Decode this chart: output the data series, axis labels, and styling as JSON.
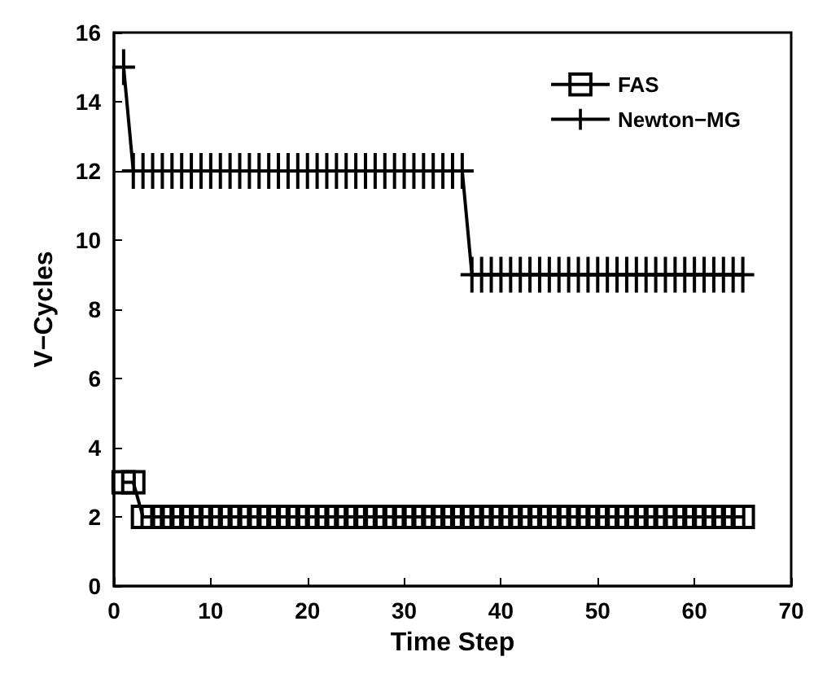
{
  "chart_data": {
    "type": "line",
    "xlabel": "Time Step",
    "ylabel": "V−Cycles",
    "xlim": [
      0,
      70
    ],
    "xticks": [
      0,
      10,
      20,
      30,
      40,
      50,
      60,
      70
    ],
    "ylim": [
      0,
      16
    ],
    "yticks": [
      0,
      2,
      4,
      6,
      8,
      10,
      12,
      14,
      16
    ],
    "grid": false,
    "legend": "top right",
    "series": [
      {
        "name": "FAS",
        "color": "#000000",
        "marker": "square",
        "x": [
          1,
          2,
          3,
          4,
          5,
          6,
          7,
          8,
          9,
          10,
          11,
          12,
          13,
          14,
          15,
          16,
          17,
          18,
          19,
          20,
          21,
          22,
          23,
          24,
          25,
          26,
          27,
          28,
          29,
          30,
          31,
          32,
          33,
          34,
          35,
          36,
          37,
          38,
          39,
          40,
          41,
          42,
          43,
          44,
          45,
          46,
          47,
          48,
          49,
          50,
          51,
          52,
          53,
          54,
          55,
          56,
          57,
          58,
          59,
          60,
          61,
          62,
          63,
          64,
          65
        ],
        "values": [
          3,
          3,
          2,
          2,
          2,
          2,
          2,
          2,
          2,
          2,
          2,
          2,
          2,
          2,
          2,
          2,
          2,
          2,
          2,
          2,
          2,
          2,
          2,
          2,
          2,
          2,
          2,
          2,
          2,
          2,
          2,
          2,
          2,
          2,
          2,
          2,
          2,
          2,
          2,
          2,
          2,
          2,
          2,
          2,
          2,
          2,
          2,
          2,
          2,
          2,
          2,
          2,
          2,
          2,
          2,
          2,
          2,
          2,
          2,
          2,
          2,
          2,
          2,
          2,
          2
        ]
      },
      {
        "name": "Newton−MG",
        "color": "#000000",
        "marker": "cross",
        "x": [
          1,
          2,
          3,
          4,
          5,
          6,
          7,
          8,
          9,
          10,
          11,
          12,
          13,
          14,
          15,
          16,
          17,
          18,
          19,
          20,
          21,
          22,
          23,
          24,
          25,
          26,
          27,
          28,
          29,
          30,
          31,
          32,
          33,
          34,
          35,
          36,
          37,
          38,
          39,
          40,
          41,
          42,
          43,
          44,
          45,
          46,
          47,
          48,
          49,
          50,
          51,
          52,
          53,
          54,
          55,
          56,
          57,
          58,
          59,
          60,
          61,
          62,
          63,
          64,
          65
        ],
        "values": [
          15,
          12,
          12,
          12,
          12,
          12,
          12,
          12,
          12,
          12,
          12,
          12,
          12,
          12,
          12,
          12,
          12,
          12,
          12,
          12,
          12,
          12,
          12,
          12,
          12,
          12,
          12,
          12,
          12,
          12,
          12,
          12,
          12,
          12,
          12,
          12,
          9,
          9,
          9,
          9,
          9,
          9,
          9,
          9,
          9,
          9,
          9,
          9,
          9,
          9,
          9,
          9,
          9,
          9,
          9,
          9,
          9,
          9,
          9,
          9,
          9,
          9,
          9,
          9,
          9
        ]
      }
    ]
  }
}
